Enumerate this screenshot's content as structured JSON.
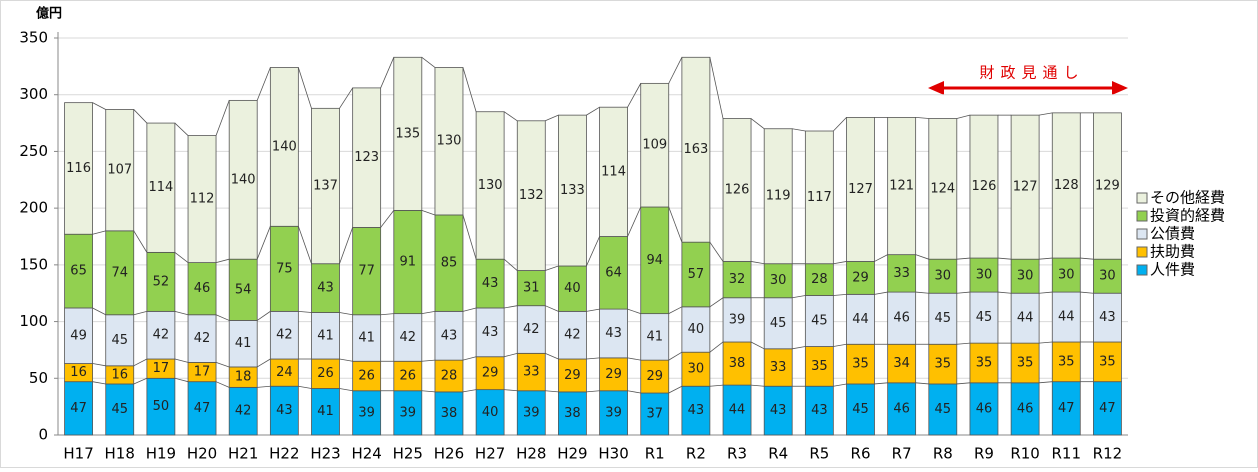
{
  "chart_data": {
    "type": "stacked_bar",
    "y_label": "億円",
    "annotation": "財政見通し",
    "categories": [
      "H17",
      "H18",
      "H19",
      "H20",
      "H21",
      "H22",
      "H23",
      "H24",
      "H25",
      "H26",
      "H27",
      "H28",
      "H29",
      "H30",
      "R1",
      "R2",
      "R3",
      "R4",
      "R5",
      "R6",
      "R7",
      "R8",
      "R9",
      "R10",
      "R11",
      "R12"
    ],
    "series": [
      {
        "name": "人件費",
        "color": "#00b0f0",
        "values": [
          47,
          45,
          50,
          47,
          42,
          43,
          41,
          39,
          39,
          38,
          40,
          39,
          38,
          39,
          37,
          43,
          44,
          43,
          43,
          45,
          46,
          45,
          46,
          46,
          47,
          47
        ]
      },
      {
        "name": "扶助費",
        "color": "#ffc000",
        "values": [
          16,
          16,
          17,
          17,
          18,
          24,
          26,
          26,
          26,
          28,
          29,
          33,
          29,
          29,
          29,
          30,
          38,
          33,
          35,
          35,
          34,
          35,
          35,
          35,
          35,
          35
        ]
      },
      {
        "name": "公債費",
        "color": "#dce6f2",
        "values": [
          49,
          45,
          42,
          42,
          41,
          42,
          41,
          41,
          42,
          43,
          43,
          42,
          42,
          43,
          41,
          40,
          39,
          45,
          45,
          44,
          46,
          45,
          45,
          44,
          44,
          43
        ]
      },
      {
        "name": "投資的経費",
        "color": "#92d050",
        "values": [
          65,
          74,
          52,
          46,
          54,
          75,
          43,
          77,
          91,
          85,
          43,
          31,
          40,
          64,
          94,
          57,
          32,
          30,
          28,
          29,
          33,
          30,
          30,
          30,
          30,
          30
        ]
      },
      {
        "name": "その他経費",
        "color": "#ebf1de",
        "values": [
          116,
          107,
          114,
          112,
          140,
          140,
          137,
          123,
          135,
          130,
          130,
          132,
          133,
          114,
          109,
          163,
          126,
          119,
          117,
          127,
          121,
          124,
          126,
          127,
          128,
          129
        ]
      }
    ],
    "ylim": [
      0,
      350
    ],
    "yticks": [
      0,
      50,
      100,
      150,
      200,
      250,
      300,
      350
    ],
    "grid": true,
    "legend": "right"
  }
}
